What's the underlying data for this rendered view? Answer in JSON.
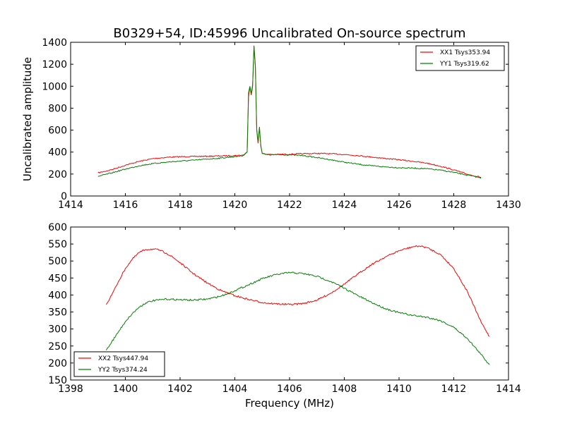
{
  "chart_data": [
    {
      "type": "line",
      "title": "B0329+54, ID:45996 Uncalibrated On-source spectrum",
      "xlabel": "",
      "ylabel": "Uncalibrated amplitude",
      "xlim": [
        1414,
        1430
      ],
      "ylim": [
        0,
        1400
      ],
      "xticks": [
        "1414",
        "1416",
        "1418",
        "1420",
        "1422",
        "1424",
        "1426",
        "1428",
        "1430"
      ],
      "yticks": [
        "0",
        "200",
        "400",
        "600",
        "800",
        "1000",
        "1200",
        "1400"
      ],
      "legend_position": "top-right",
      "series": [
        {
          "name": "XX1 Tsys353.94",
          "color": "#ff0000",
          "points": [
            [
              1415.0,
              210
            ],
            [
              1415.5,
              240
            ],
            [
              1416.0,
              280
            ],
            [
              1416.5,
              315
            ],
            [
              1417.0,
              340
            ],
            [
              1417.5,
              352
            ],
            [
              1418.0,
              358
            ],
            [
              1418.5,
              360
            ],
            [
              1419.0,
              362
            ],
            [
              1419.5,
              365
            ],
            [
              1420.0,
              368
            ],
            [
              1420.3,
              372
            ],
            [
              1420.45,
              400
            ],
            [
              1420.5,
              900
            ],
            [
              1420.55,
              990
            ],
            [
              1420.6,
              920
            ],
            [
              1420.65,
              1000
            ],
            [
              1420.7,
              1360
            ],
            [
              1420.75,
              1180
            ],
            [
              1420.8,
              600
            ],
            [
              1420.85,
              480
            ],
            [
              1420.9,
              620
            ],
            [
              1420.95,
              450
            ],
            [
              1421.0,
              390
            ],
            [
              1421.2,
              378
            ],
            [
              1421.5,
              378
            ],
            [
              1422.0,
              380
            ],
            [
              1422.5,
              385
            ],
            [
              1423.0,
              388
            ],
            [
              1423.5,
              385
            ],
            [
              1424.0,
              378
            ],
            [
              1424.5,
              368
            ],
            [
              1425.0,
              355
            ],
            [
              1425.5,
              342
            ],
            [
              1426.0,
              330
            ],
            [
              1426.5,
              316
            ],
            [
              1427.0,
              300
            ],
            [
              1427.5,
              272
            ],
            [
              1428.0,
              238
            ],
            [
              1428.5,
              198
            ],
            [
              1429.0,
              170
            ]
          ]
        },
        {
          "name": "YY1 Tsys319.62",
          "color": "#008000",
          "points": [
            [
              1415.0,
              178
            ],
            [
              1415.5,
              210
            ],
            [
              1416.0,
              245
            ],
            [
              1416.5,
              275
            ],
            [
              1417.0,
              295
            ],
            [
              1417.5,
              308
            ],
            [
              1418.0,
              318
            ],
            [
              1418.5,
              326
            ],
            [
              1419.0,
              336
            ],
            [
              1419.5,
              346
            ],
            [
              1420.0,
              358
            ],
            [
              1420.3,
              368
            ],
            [
              1420.45,
              400
            ],
            [
              1420.5,
              940
            ],
            [
              1420.55,
              1000
            ],
            [
              1420.6,
              930
            ],
            [
              1420.65,
              1010
            ],
            [
              1420.7,
              1370
            ],
            [
              1420.75,
              1190
            ],
            [
              1420.8,
              610
            ],
            [
              1420.85,
              490
            ],
            [
              1420.9,
              630
            ],
            [
              1420.95,
              460
            ],
            [
              1421.0,
              388
            ],
            [
              1421.2,
              375
            ],
            [
              1421.5,
              376
            ],
            [
              1422.0,
              375
            ],
            [
              1422.5,
              368
            ],
            [
              1423.0,
              350
            ],
            [
              1423.5,
              330
            ],
            [
              1424.0,
              308
            ],
            [
              1424.5,
              290
            ],
            [
              1425.0,
              275
            ],
            [
              1425.5,
              265
            ],
            [
              1426.0,
              258
            ],
            [
              1426.5,
              254
            ],
            [
              1427.0,
              248
            ],
            [
              1427.5,
              236
            ],
            [
              1428.0,
              215
            ],
            [
              1428.5,
              190
            ],
            [
              1429.0,
              165
            ]
          ]
        }
      ]
    },
    {
      "type": "line",
      "title": "",
      "xlabel": "Frequency (MHz)",
      "ylabel": "",
      "xlim": [
        1398,
        1414
      ],
      "ylim": [
        150,
        600
      ],
      "xticks": [
        "1398",
        "1400",
        "1402",
        "1404",
        "1406",
        "1408",
        "1410",
        "1412",
        "1414"
      ],
      "yticks": [
        "150",
        "200",
        "250",
        "300",
        "350",
        "400",
        "450",
        "500",
        "550",
        "600"
      ],
      "legend_position": "bottom-left",
      "series": [
        {
          "name": "XX2 Tsys447.94",
          "color": "#ff0000",
          "points": [
            [
              1399.3,
              372
            ],
            [
              1399.5,
              400
            ],
            [
              1399.75,
              440
            ],
            [
              1400.0,
              478
            ],
            [
              1400.25,
              505
            ],
            [
              1400.5,
              525
            ],
            [
              1400.75,
              534
            ],
            [
              1401.0,
              535
            ],
            [
              1401.25,
              532
            ],
            [
              1401.5,
              523
            ],
            [
              1401.75,
              510
            ],
            [
              1402.0,
              495
            ],
            [
              1402.5,
              462
            ],
            [
              1403.0,
              435
            ],
            [
              1403.5,
              413
            ],
            [
              1404.0,
              398
            ],
            [
              1404.5,
              387
            ],
            [
              1405.0,
              378
            ],
            [
              1405.5,
              374
            ],
            [
              1406.0,
              372
            ],
            [
              1406.5,
              375
            ],
            [
              1407.0,
              385
            ],
            [
              1407.5,
              405
            ],
            [
              1408.0,
              432
            ],
            [
              1408.5,
              462
            ],
            [
              1409.0,
              490
            ],
            [
              1409.5,
              512
            ],
            [
              1410.0,
              530
            ],
            [
              1410.5,
              542
            ],
            [
              1410.75,
              544
            ],
            [
              1411.0,
              540
            ],
            [
              1411.5,
              520
            ],
            [
              1412.0,
              478
            ],
            [
              1412.5,
              410
            ],
            [
              1413.0,
              320
            ],
            [
              1413.3,
              278
            ]
          ]
        },
        {
          "name": "YY2 Tsys374.24",
          "color": "#008000",
          "points": [
            [
              1399.3,
              238
            ],
            [
              1399.5,
              262
            ],
            [
              1399.75,
              292
            ],
            [
              1400.0,
              322
            ],
            [
              1400.25,
              345
            ],
            [
              1400.5,
              364
            ],
            [
              1400.75,
              377
            ],
            [
              1401.0,
              383
            ],
            [
              1401.5,
              388
            ],
            [
              1402.0,
              386
            ],
            [
              1402.5,
              385
            ],
            [
              1403.0,
              388
            ],
            [
              1403.5,
              397
            ],
            [
              1404.0,
              413
            ],
            [
              1404.5,
              430
            ],
            [
              1405.0,
              448
            ],
            [
              1405.5,
              460
            ],
            [
              1406.0,
              466
            ],
            [
              1406.5,
              463
            ],
            [
              1407.0,
              455
            ],
            [
              1407.5,
              440
            ],
            [
              1408.0,
              420
            ],
            [
              1408.5,
              398
            ],
            [
              1409.0,
              378
            ],
            [
              1409.5,
              360
            ],
            [
              1410.0,
              348
            ],
            [
              1410.5,
              340
            ],
            [
              1411.0,
              335
            ],
            [
              1411.5,
              325
            ],
            [
              1412.0,
              305
            ],
            [
              1412.5,
              272
            ],
            [
              1413.0,
              225
            ],
            [
              1413.3,
              195
            ]
          ]
        }
      ]
    }
  ]
}
